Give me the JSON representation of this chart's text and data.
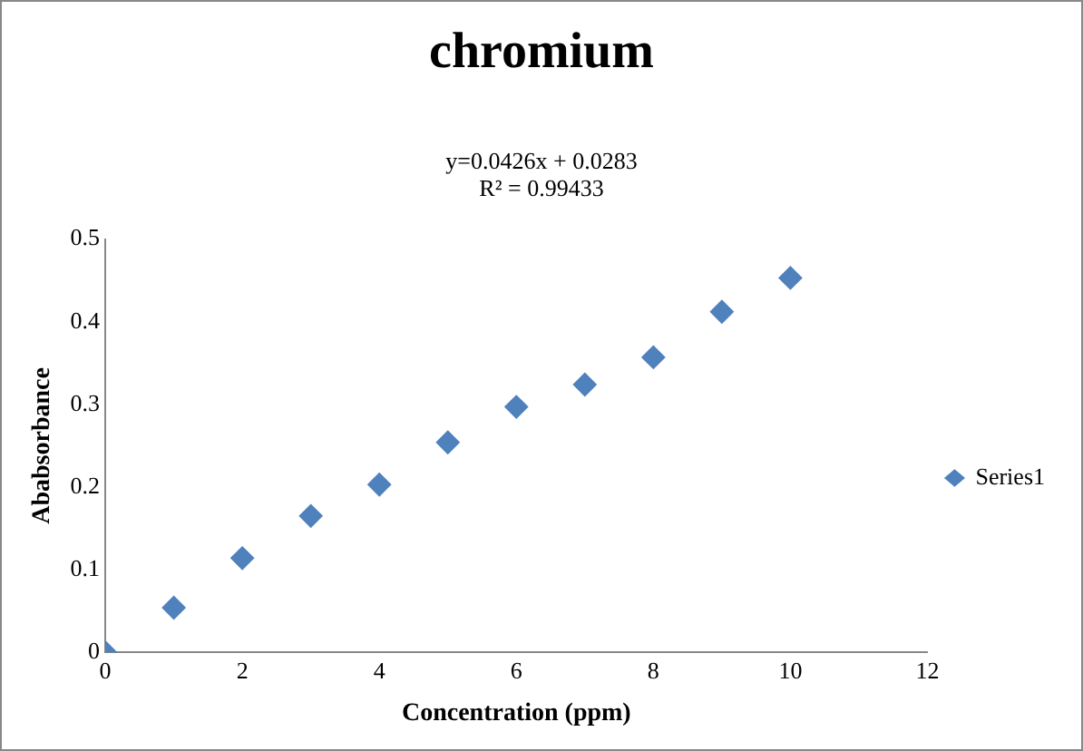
{
  "chart_data": {
    "type": "scatter",
    "title": "chromium",
    "xlabel": "Concentration (ppm)",
    "ylabel": "Ababsorbance",
    "annotations": [
      "y=0.0426x + 0.0283",
      "R² = 0.99433"
    ],
    "x": [
      0,
      1,
      2,
      3,
      4,
      5,
      6,
      7,
      8,
      9,
      10
    ],
    "series": [
      {
        "name": "Series1",
        "color": "#4f81bd",
        "values": [
          0,
          0.054,
          0.114,
          0.165,
          0.203,
          0.254,
          0.297,
          0.324,
          0.357,
          0.412,
          0.453
        ]
      }
    ],
    "xlim": [
      0,
      12
    ],
    "xticks": [
      0,
      2,
      4,
      6,
      8,
      10,
      12
    ],
    "ylim": [
      0,
      0.5
    ],
    "yticks": [
      0,
      0.1,
      0.2,
      0.3,
      0.4,
      0.5
    ],
    "grid": false,
    "legend": "right",
    "marker": "diamond"
  }
}
